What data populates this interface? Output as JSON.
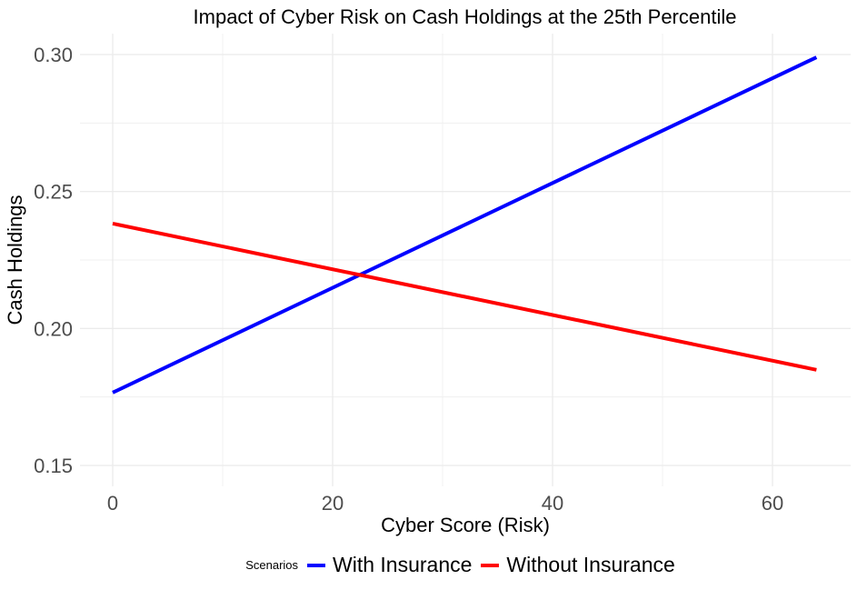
{
  "chart_data": {
    "type": "line",
    "title": "Impact of Cyber Risk on Cash Holdings at the 25th Percentile",
    "xlabel": "Cyber Score (Risk)",
    "ylabel": "Cash Holdings",
    "xlim": [
      -2.5,
      66.5
    ],
    "ylim": [
      0.142,
      0.307
    ],
    "xticks": [
      0,
      20,
      40,
      60
    ],
    "xtick_labels": [
      "0",
      "20",
      "40",
      "60"
    ],
    "yticks": [
      0.15,
      0.2,
      0.25,
      0.3
    ],
    "ytick_labels": [
      "0.15",
      "0.20",
      "0.25",
      "0.30"
    ],
    "grid": true,
    "legend": {
      "title": "Scenarios",
      "position": "bottom"
    },
    "series": [
      {
        "name": "With Insurance",
        "color": "#0000ff",
        "x": [
          0,
          64
        ],
        "y": [
          0.1766,
          0.299
        ]
      },
      {
        "name": "Without Insurance",
        "color": "#ff0000",
        "x": [
          0,
          64
        ],
        "y": [
          0.2383,
          0.1849
        ]
      }
    ]
  },
  "legend": {
    "title": "Scenarios",
    "items": [
      {
        "label": "With Insurance",
        "color": "#0000ff"
      },
      {
        "label": "Without Insurance",
        "color": "#ff0000"
      }
    ]
  }
}
